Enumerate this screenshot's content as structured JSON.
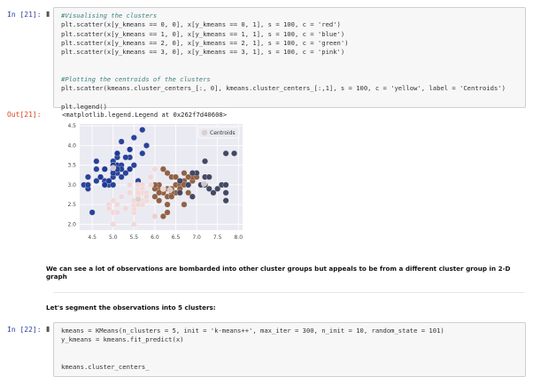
{
  "cell21": {
    "prompt_in": "In [21]:",
    "lines": [
      {
        "text": "#Visualising the clusters",
        "comment": true
      },
      {
        "text": "plt.scatter(x[y_kmeans == 0, 0], x[y_kmeans == 0, 1], s = 100, c = 'red')",
        "comment": false
      },
      {
        "text": "plt.scatter(x[y_kmeans == 1, 0], x[y_kmeans == 1, 1], s = 100, c = 'blue')",
        "comment": false
      },
      {
        "text": "plt.scatter(x[y_kmeans == 2, 0], x[y_kmeans == 2, 1], s = 100, c = 'green')",
        "comment": false
      },
      {
        "text": "plt.scatter(x[y_kmeans == 3, 0], x[y_kmeans == 3, 1], s = 100, c = 'pink')",
        "comment": false
      },
      {
        "text": "",
        "comment": false
      },
      {
        "text": "",
        "comment": false
      },
      {
        "text": "#Plotting the centroids of the clusters",
        "comment": true
      },
      {
        "text": "plt.scatter(kmeans.cluster_centers_[:, 0], kmeans.cluster_centers_[:,1], s = 100, c = 'yellow', label = 'Centroids')",
        "comment": false
      },
      {
        "text": "",
        "comment": false
      },
      {
        "text": "plt.legend()",
        "comment": false
      }
    ],
    "prompt_out": "Out[21]:",
    "output_text": "<matplotlib.legend.Legend at 0x262f7d40608>"
  },
  "markdown1": "We can see a lot of observations are bombarded into other cluster groups but appeals to be from a different cluster group in 2-D graph",
  "markdown2": "Let's segment the observations into 5 clusters:",
  "cell22": {
    "prompt_in": "In [22]:",
    "lines": [
      "kmeans = KMeans(n_clusters = 5, init = 'k-means++', max_iter = 300, n_init = 10, random_state = 101)",
      "y_kmeans = kmeans.fit_predict(x)",
      "",
      "",
      "kmeans.cluster_centers_"
    ]
  },
  "colors": {
    "plot_bg": "#eaeaf2",
    "grid": "#ffffff",
    "blue": "#1f3a93",
    "brown": "#8b5a3c",
    "dark": "#3a3f5c",
    "pink": "#f0d8d8",
    "centroid": "#d8cfcf"
  },
  "chart_data": {
    "type": "scatter",
    "xlim": [
      4.2,
      8.1
    ],
    "ylim": [
      1.85,
      4.55
    ],
    "x_ticks": [
      4.5,
      5.0,
      5.5,
      6.0,
      6.5,
      7.0,
      7.5,
      8.0
    ],
    "x_tick_labels": [
      "4.5",
      "5.0",
      "5.5",
      "6.0",
      "6.5",
      "7.0",
      "7.5",
      "8.0"
    ],
    "y_ticks": [
      2.0,
      2.5,
      3.0,
      3.5,
      4.0,
      4.5
    ],
    "y_tick_labels": [
      "2.0",
      "2.5",
      "3.0",
      "3.5",
      "4.0",
      "4.5"
    ],
    "grid": true,
    "legend_position": "top-right",
    "legend_label": "Centroids",
    "series": [
      {
        "color": "#1f3a93",
        "points": [
          [
            5.1,
            3.5
          ],
          [
            4.9,
            3.0
          ],
          [
            4.7,
            3.2
          ],
          [
            4.6,
            3.1
          ],
          [
            5.0,
            3.6
          ],
          [
            5.4,
            3.9
          ],
          [
            4.6,
            3.4
          ],
          [
            5.0,
            3.4
          ],
          [
            4.4,
            2.9
          ],
          [
            4.9,
            3.1
          ],
          [
            5.4,
            3.7
          ],
          [
            4.8,
            3.4
          ],
          [
            4.8,
            3.0
          ],
          [
            4.3,
            3.0
          ],
          [
            5.8,
            4.0
          ],
          [
            5.7,
            4.4
          ],
          [
            5.4,
            3.9
          ],
          [
            5.1,
            3.5
          ],
          [
            5.7,
            3.8
          ],
          [
            5.1,
            3.8
          ],
          [
            5.4,
            3.4
          ],
          [
            5.1,
            3.7
          ],
          [
            4.6,
            3.6
          ],
          [
            5.1,
            3.3
          ],
          [
            4.8,
            3.4
          ],
          [
            5.0,
            3.0
          ],
          [
            5.0,
            3.4
          ],
          [
            5.2,
            3.5
          ],
          [
            5.2,
            3.4
          ],
          [
            4.7,
            3.2
          ],
          [
            4.8,
            3.1
          ],
          [
            5.4,
            3.4
          ],
          [
            5.2,
            4.1
          ],
          [
            5.5,
            4.2
          ],
          [
            4.9,
            3.1
          ],
          [
            5.0,
            3.2
          ],
          [
            5.5,
            3.5
          ],
          [
            4.4,
            3.0
          ],
          [
            5.1,
            3.4
          ],
          [
            5.0,
            3.5
          ],
          [
            4.5,
            2.3
          ],
          [
            4.4,
            3.2
          ],
          [
            5.0,
            3.5
          ],
          [
            5.1,
            3.8
          ],
          [
            4.8,
            3.0
          ],
          [
            5.3,
            3.7
          ],
          [
            5.0,
            3.3
          ],
          [
            5.2,
            3.2
          ],
          [
            5.6,
            3.1
          ],
          [
            5.3,
            3.3
          ]
        ]
      },
      {
        "color": "#8b5a3c",
        "points": [
          [
            6.3,
            3.3
          ],
          [
            6.5,
            3.0
          ],
          [
            6.0,
            2.2
          ],
          [
            6.1,
            2.9
          ],
          [
            6.7,
            3.1
          ],
          [
            6.3,
            2.5
          ],
          [
            6.2,
            2.2
          ],
          [
            6.4,
            2.9
          ],
          [
            6.6,
            3.0
          ],
          [
            6.8,
            2.8
          ],
          [
            6.7,
            3.0
          ],
          [
            6.0,
            2.9
          ],
          [
            6.4,
            3.2
          ],
          [
            6.9,
            3.1
          ],
          [
            6.5,
            2.8
          ],
          [
            6.3,
            2.3
          ],
          [
            6.6,
            2.9
          ],
          [
            6.2,
            2.8
          ],
          [
            6.1,
            3.0
          ],
          [
            6.4,
            2.8
          ],
          [
            6.3,
            2.9
          ],
          [
            6.1,
            2.6
          ],
          [
            6.7,
            3.3
          ],
          [
            6.5,
            3.2
          ],
          [
            6.0,
            3.0
          ],
          [
            6.9,
            3.2
          ],
          [
            6.3,
            2.7
          ],
          [
            6.2,
            3.4
          ],
          [
            6.8,
            3.2
          ],
          [
            6.4,
            2.7
          ],
          [
            7.0,
            3.2
          ],
          [
            6.1,
            2.8
          ],
          [
            6.7,
            2.5
          ],
          [
            6.0,
            2.7
          ]
        ]
      },
      {
        "color": "#3a3f5c",
        "points": [
          [
            7.1,
            3.0
          ],
          [
            7.6,
            3.0
          ],
          [
            7.3,
            2.9
          ],
          [
            7.2,
            3.6
          ],
          [
            7.7,
            3.8
          ],
          [
            7.7,
            2.6
          ],
          [
            7.7,
            2.8
          ],
          [
            7.2,
            3.2
          ],
          [
            7.2,
            3.0
          ],
          [
            7.4,
            2.8
          ],
          [
            7.9,
            3.8
          ],
          [
            7.7,
            3.0
          ],
          [
            7.0,
            3.3
          ],
          [
            6.9,
            2.7
          ],
          [
            6.6,
            3.1
          ],
          [
            6.8,
            3.0
          ],
          [
            7.3,
            3.2
          ],
          [
            6.6,
            2.8
          ],
          [
            6.9,
            3.3
          ],
          [
            7.5,
            2.9
          ]
        ]
      },
      {
        "color": "#f0d8d8",
        "points": [
          [
            5.7,
            2.8
          ],
          [
            5.5,
            2.3
          ],
          [
            5.7,
            2.6
          ],
          [
            5.6,
            2.9
          ],
          [
            5.8,
            2.7
          ],
          [
            5.0,
            2.0
          ],
          [
            5.9,
            3.0
          ],
          [
            5.6,
            2.5
          ],
          [
            5.5,
            2.4
          ],
          [
            5.8,
            2.7
          ],
          [
            5.4,
            3.0
          ],
          [
            5.6,
            3.0
          ],
          [
            5.5,
            2.5
          ],
          [
            5.5,
            2.6
          ],
          [
            5.8,
            2.6
          ],
          [
            5.0,
            2.3
          ],
          [
            5.6,
            2.7
          ],
          [
            5.7,
            3.0
          ],
          [
            5.7,
            2.9
          ],
          [
            5.1,
            2.5
          ],
          [
            5.7,
            2.8
          ],
          [
            4.9,
            2.5
          ],
          [
            5.9,
            3.2
          ],
          [
            5.8,
            2.8
          ],
          [
            6.0,
            2.2
          ],
          [
            5.6,
            2.8
          ],
          [
            5.2,
            2.7
          ],
          [
            5.0,
            2.6
          ],
          [
            6.0,
            3.4
          ],
          [
            5.5,
            2.0
          ],
          [
            4.9,
            2.4
          ],
          [
            5.2,
            2.7
          ],
          [
            5.8,
            2.7
          ],
          [
            5.9,
            3.0
          ],
          [
            5.7,
            2.5
          ],
          [
            5.6,
            2.5
          ],
          [
            5.3,
            2.4
          ],
          [
            5.4,
            2.8
          ],
          [
            5.1,
            2.3
          ],
          [
            6.2,
            2.9
          ]
        ]
      },
      {
        "color": "#d8cfcf",
        "label": "Centroids",
        "points": [
          [
            5.0,
            3.43
          ],
          [
            6.36,
            2.87
          ],
          [
            7.18,
            3.03
          ],
          [
            5.6,
            2.63
          ]
        ]
      }
    ]
  }
}
